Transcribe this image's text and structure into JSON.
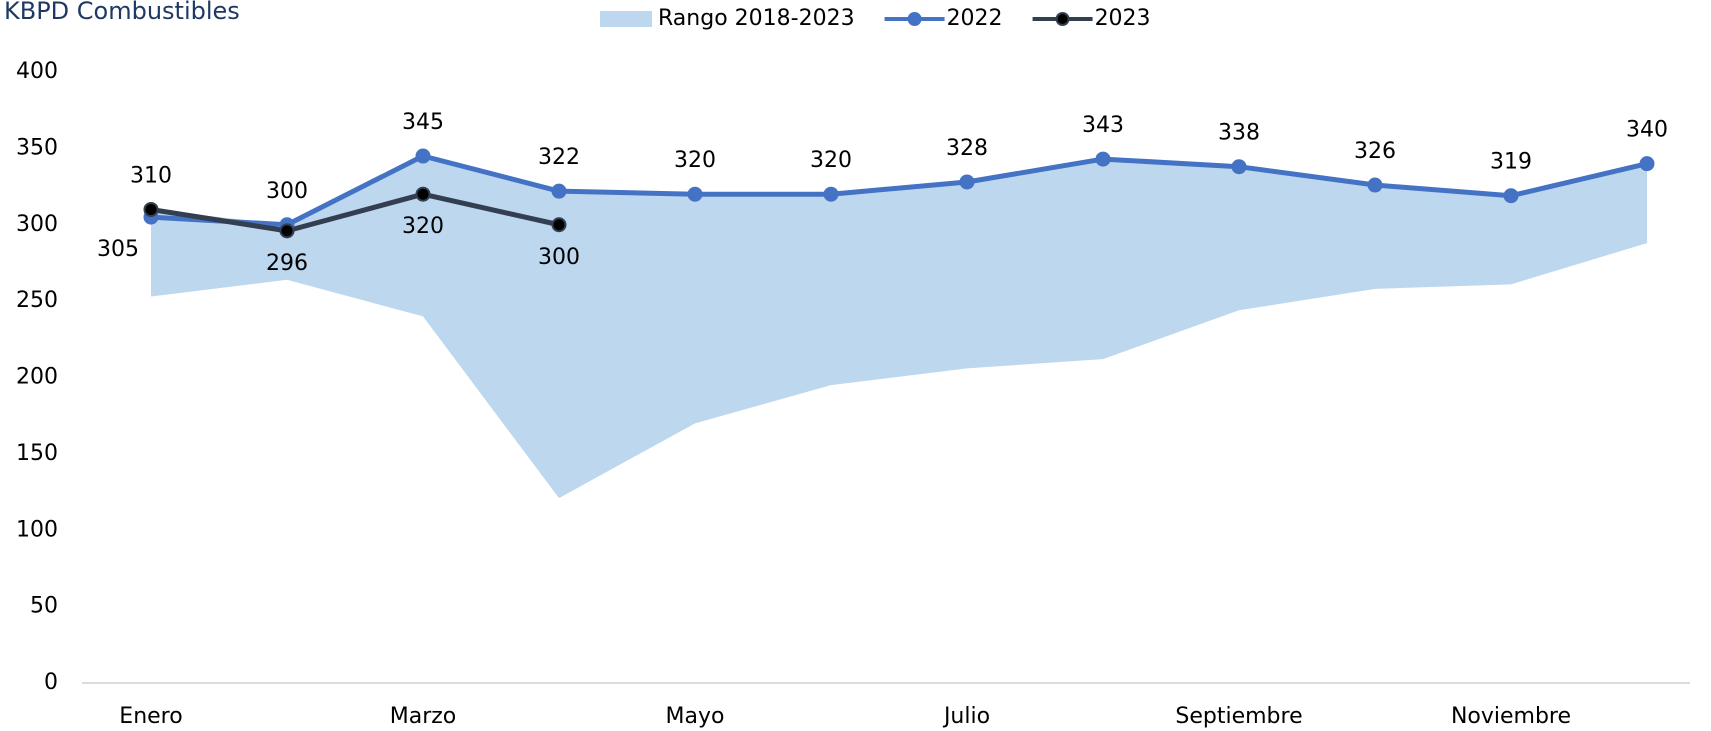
{
  "chart_data": {
    "type": "line",
    "title": "KBPD Combustibles",
    "categories": [
      "Enero",
      null,
      "Marzo",
      null,
      "Mayo",
      null,
      "Julio",
      null,
      "Septiembre",
      null,
      "Noviembre",
      null
    ],
    "series": [
      {
        "name": "Rango 2018-2023",
        "type": "range",
        "color": "#bdd7ee",
        "low": [
          253,
          264,
          240,
          121,
          170,
          195,
          206,
          212,
          244,
          258,
          261,
          288
        ],
        "high": [
          310,
          300,
          345,
          322,
          320,
          320,
          328,
          343,
          338,
          326,
          319,
          340
        ]
      },
      {
        "name": "2022",
        "color": "#4472c4",
        "marker_color": "#4472c4",
        "values": [
          305,
          300,
          345,
          322,
          320,
          320,
          328,
          343,
          338,
          326,
          319,
          340
        ]
      },
      {
        "name": "2023",
        "color": "#333f50",
        "marker_color": "#000000",
        "values": [
          310,
          296,
          320,
          300,
          null,
          null,
          null,
          null,
          null,
          null,
          null,
          null
        ]
      }
    ],
    "ylim": [
      0,
      400
    ],
    "yticks": [
      0,
      50,
      100,
      150,
      200,
      250,
      300,
      350,
      400
    ],
    "grid": false,
    "legend": "top"
  }
}
